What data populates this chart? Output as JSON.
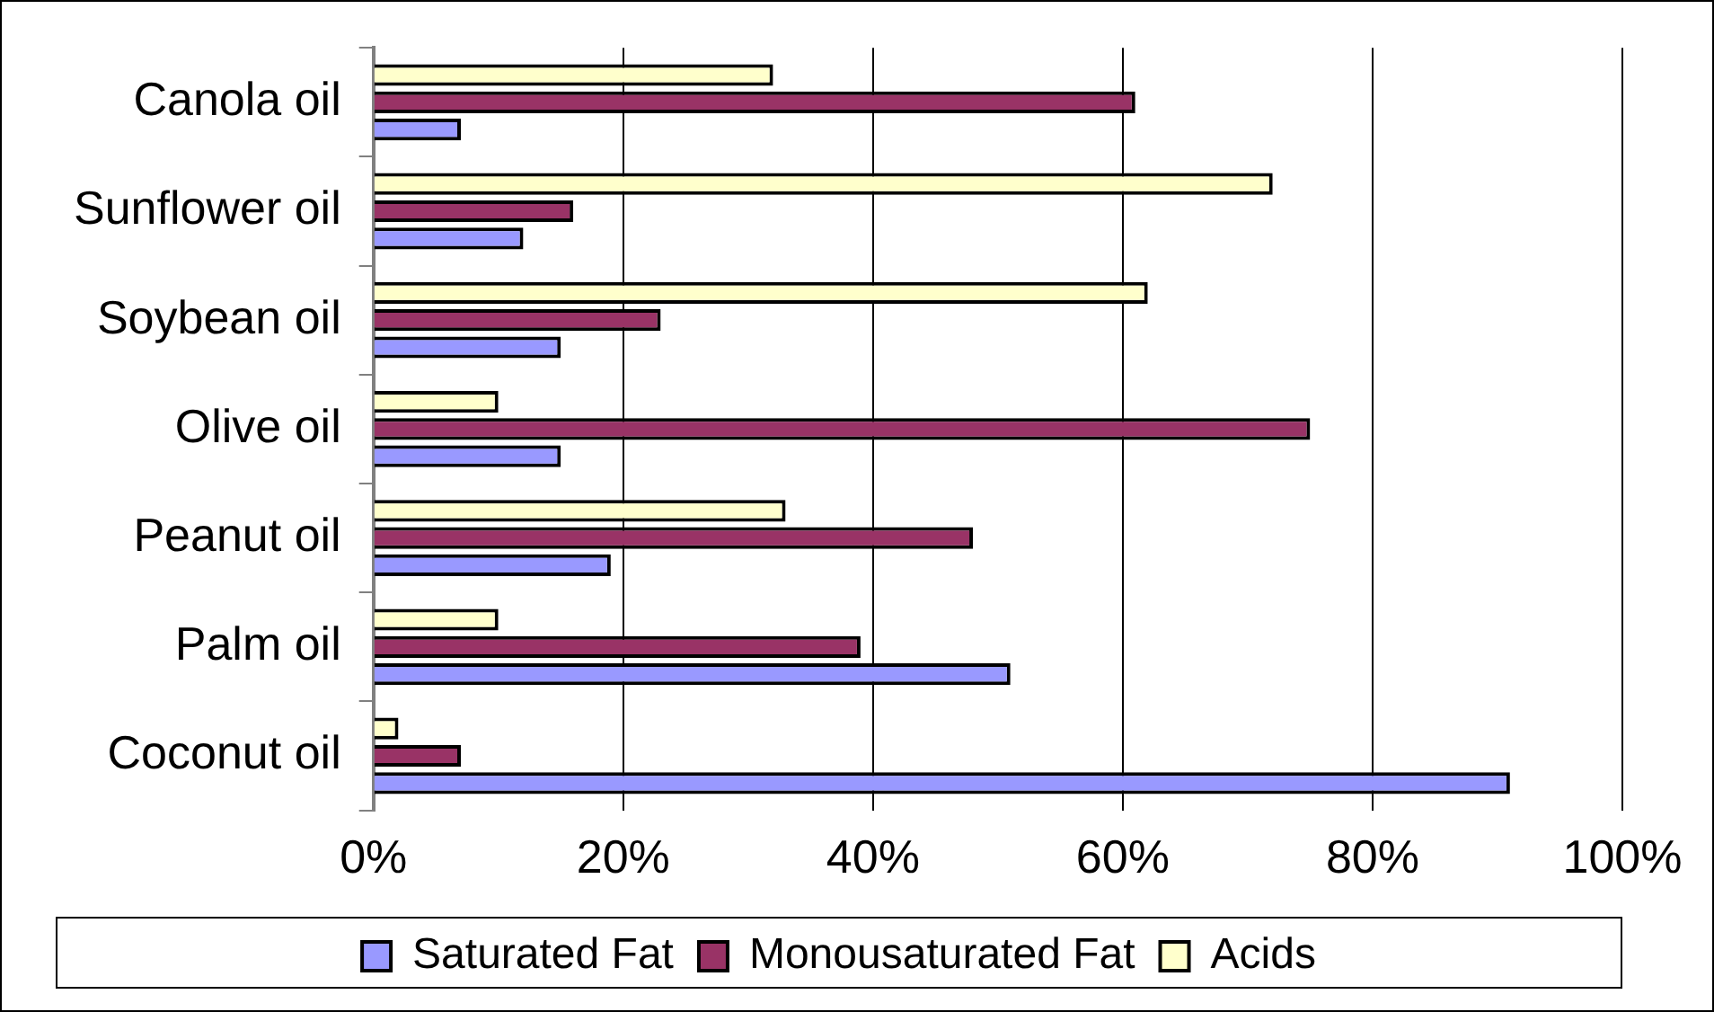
{
  "chart_data": {
    "type": "bar",
    "orientation": "horizontal",
    "categories": [
      "Canola oil",
      "Sunflower oil",
      "Soybean oil",
      "Olive oil",
      "Peanut oil",
      "Palm oil",
      "Coconut oil"
    ],
    "series": [
      {
        "name": "Saturated Fat",
        "color": "#9999ff",
        "values": [
          7,
          12,
          15,
          15,
          19,
          51,
          91
        ]
      },
      {
        "name": "Monousaturated Fat",
        "color": "#993366",
        "values": [
          61,
          16,
          23,
          75,
          48,
          39,
          7
        ]
      },
      {
        "name": "Acids",
        "color": "#ffffcc",
        "values": [
          32,
          72,
          62,
          10,
          33,
          10,
          2
        ]
      }
    ],
    "xlim": [
      0,
      100
    ],
    "xticks": [
      {
        "value": 0,
        "label": "0%"
      },
      {
        "value": 20,
        "label": "20%"
      },
      {
        "value": 40,
        "label": "40%"
      },
      {
        "value": 60,
        "label": "60%"
      },
      {
        "value": 80,
        "label": "80%"
      },
      {
        "value": 100,
        "label": "100%"
      }
    ],
    "grid": "x",
    "legend": "bottom"
  }
}
